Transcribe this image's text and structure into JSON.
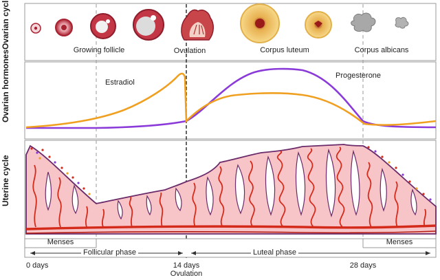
{
  "panels": {
    "ovarian_cycle": "Ovarian cycle",
    "ovarian_hormones": "Ovarian hormones",
    "uterine_cycle": "Uterine cycle"
  },
  "ovary_labels": {
    "growing_follicle": "Growing follicle",
    "ovulation": "Ovulation",
    "corpus_luteum": "Corpus luteum",
    "corpus_albicans": "Corpus albicans"
  },
  "hormones": {
    "estradiol": "Estradiol",
    "progesterone": "Progesterone"
  },
  "phases": {
    "menses_left": "Menses",
    "follicular": "Follicular phase",
    "luteal": "Luteal phase",
    "menses_right": "Menses"
  },
  "timeline": {
    "day0": "0 days",
    "day14": "14 days",
    "day14_sub": "Ovulation",
    "day28": "28 days"
  },
  "colors": {
    "estradiol": "#f0a020",
    "progesterone": "#8a3ad8",
    "endometrium": "#f7c4c8",
    "endometrium_edge": "#6a2a6a",
    "vessel": "#d42a1a",
    "follicle": "#b83040",
    "luteum": "#f6d27a"
  }
}
